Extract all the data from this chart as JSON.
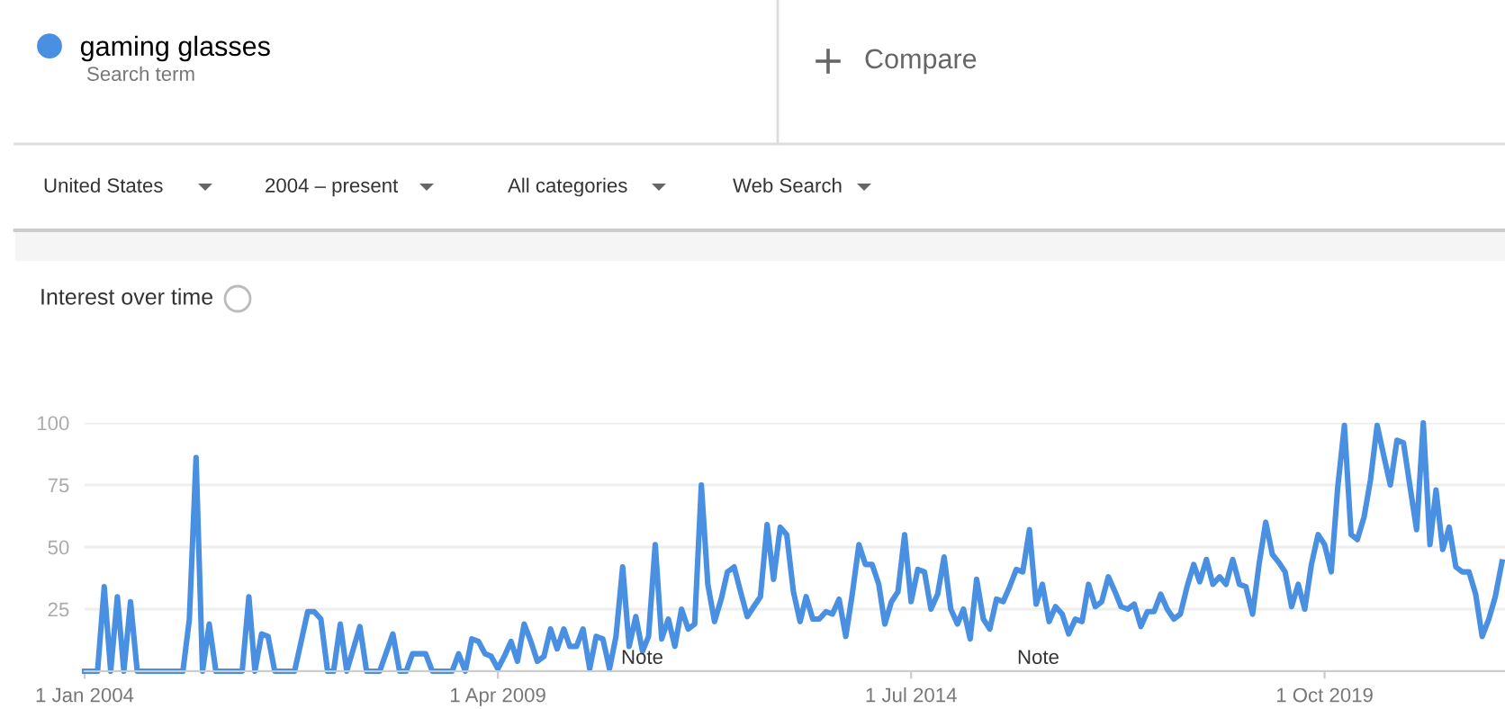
{
  "chart_data": {
    "type": "line",
    "title": "Interest over time",
    "annotations": [
      "Search term",
      "Compare",
      "United States",
      "2004 – present",
      "All categories",
      "Web Search",
      "Note",
      "Note"
    ],
    "x": [
      "2004-01",
      "2004-03",
      "2004-04",
      "2004-05",
      "2004-06",
      "2004-07",
      "2004-08",
      "2004-09",
      "2005-04",
      "2005-05",
      "2005-06",
      "2005-07",
      "2005-08",
      "2005-09",
      "2006-01",
      "2006-02",
      "2006-03",
      "2006-04",
      "2006-05",
      "2006-06",
      "2006-09",
      "2006-11",
      "2006-12",
      "2007-01",
      "2007-02",
      "2007-03",
      "2007-04",
      "2007-05",
      "2007-07",
      "2007-08",
      "2007-10",
      "2007-12",
      "2008-01",
      "2008-02",
      "2008-03",
      "2008-05",
      "2008-06",
      "2008-09",
      "2008-10",
      "2008-11",
      "2008-12",
      "2009-01",
      "2009-02",
      "2009-03",
      "2009-04",
      "2009-05",
      "2009-06",
      "2009-07",
      "2009-08",
      "2009-09",
      "2009-10",
      "2009-11",
      "2009-12",
      "2010-01",
      "2010-02",
      "2010-03",
      "2010-04",
      "2010-05",
      "2010-06",
      "2010-07",
      "2010-08",
      "2010-09",
      "2010-10",
      "2010-11",
      "2010-12",
      "2011-01",
      "2011-02",
      "2011-03",
      "2011-04",
      "2011-05",
      "2011-06",
      "2011-07",
      "2011-08",
      "2011-09",
      "2011-10",
      "2011-11",
      "2011-12",
      "2012-01",
      "2012-02",
      "2012-03",
      "2012-04",
      "2012-05",
      "2012-06",
      "2012-07",
      "2012-08",
      "2012-09",
      "2012-10",
      "2012-11",
      "2012-12",
      "2013-01",
      "2013-02",
      "2013-03",
      "2013-04",
      "2013-05",
      "2013-06",
      "2013-07",
      "2013-08",
      "2013-09",
      "2013-10",
      "2013-11",
      "2013-12",
      "2014-01",
      "2014-02",
      "2014-03",
      "2014-04",
      "2014-05",
      "2014-06",
      "2014-07",
      "2014-08",
      "2014-09",
      "2014-10",
      "2014-11",
      "2014-12",
      "2015-01",
      "2015-02",
      "2015-03",
      "2015-04",
      "2015-05",
      "2015-06",
      "2015-07",
      "2015-08",
      "2015-09",
      "2015-10",
      "2015-11",
      "2015-12",
      "2016-01",
      "2016-02",
      "2016-03",
      "2016-04",
      "2016-05",
      "2016-06",
      "2016-07",
      "2016-08",
      "2016-09",
      "2016-10",
      "2016-11",
      "2016-12",
      "2017-01",
      "2017-02",
      "2017-03",
      "2017-04",
      "2017-05",
      "2017-06",
      "2017-07",
      "2017-08",
      "2017-09",
      "2017-10",
      "2017-11",
      "2017-12",
      "2018-01",
      "2018-02",
      "2018-03",
      "2018-04",
      "2018-05",
      "2018-06",
      "2018-07",
      "2018-08",
      "2018-09",
      "2018-10",
      "2018-11",
      "2018-12",
      "2019-01",
      "2019-02",
      "2019-03",
      "2019-04",
      "2019-05",
      "2019-06",
      "2019-07",
      "2019-08",
      "2019-09",
      "2019-10",
      "2019-11",
      "2019-12",
      "2020-01",
      "2020-02",
      "2020-03",
      "2020-04",
      "2020-05",
      "2020-06",
      "2020-07",
      "2020-08",
      "2020-09",
      "2020-10",
      "2020-11",
      "2020-12",
      "2021-01",
      "2021-02",
      "2021-03",
      "2021-04",
      "2021-05",
      "2021-06",
      "2021-07",
      "2021-08",
      "2021-09",
      "2021-10",
      "2021-11",
      "2021-12",
      "2022-01"
    ],
    "series": [
      {
        "name": "gaming glasses",
        "color": "#4a90e2",
        "values": [
          0,
          0,
          34,
          0,
          30,
          0,
          28,
          0,
          0,
          21,
          86,
          0,
          19,
          0,
          0,
          30,
          0,
          15,
          14,
          0,
          0,
          24,
          24,
          21,
          0,
          0,
          19,
          0,
          18,
          0,
          0,
          15,
          0,
          0,
          7,
          7,
          0,
          0,
          7,
          0,
          13,
          12,
          7,
          6,
          1,
          6,
          12,
          4,
          19,
          12,
          4,
          6,
          17,
          9,
          17,
          10,
          10,
          17,
          1,
          14,
          13,
          1,
          14,
          42,
          10,
          22,
          8,
          14,
          51,
          13,
          21,
          10,
          25,
          17,
          19,
          75,
          35,
          20,
          29,
          40,
          42,
          32,
          22,
          26,
          30,
          59,
          37,
          58,
          55,
          32,
          20,
          30,
          21,
          21,
          24,
          23,
          29,
          14,
          31,
          51,
          43,
          43,
          35,
          19,
          28,
          32,
          55,
          28,
          41,
          40,
          25,
          31,
          46,
          25,
          19,
          25,
          13,
          37,
          21,
          17,
          29,
          28,
          34,
          41,
          40,
          57,
          27,
          35,
          20,
          26,
          23,
          15,
          21,
          20,
          35,
          26,
          28,
          38,
          32,
          26,
          25,
          27,
          18,
          24,
          24,
          31,
          25,
          21,
          23,
          34,
          43,
          36,
          45,
          35,
          38,
          35,
          45,
          35,
          34,
          23,
          43,
          60,
          47,
          44,
          40,
          26,
          35,
          25,
          43,
          55,
          51,
          40,
          74,
          99,
          55,
          53,
          62,
          77,
          99,
          87,
          75,
          93,
          92,
          74,
          57,
          100,
          51,
          73,
          49,
          58,
          42,
          40,
          40,
          31,
          14,
          21,
          30,
          44
        ]
      }
    ],
    "xlim": [
      "2004-01-01",
      "2022-01-15"
    ],
    "xticks": [
      {
        "value": "2004-01-01",
        "label": "1 Jan 2004"
      },
      {
        "value": "2009-04-01",
        "label": "1 Apr 2009"
      },
      {
        "value": "2014-07-01",
        "label": "1 Jul 2014"
      },
      {
        "value": "2019-10-01",
        "label": "1 Oct 2019"
      }
    ],
    "ylim": [
      0,
      100
    ],
    "yticks": [
      {
        "value": 0,
        "label": null
      },
      25,
      50,
      75,
      100
    ],
    "grid": "y",
    "legend": "top left",
    "marker": "none",
    "line_style": "solid"
  }
}
